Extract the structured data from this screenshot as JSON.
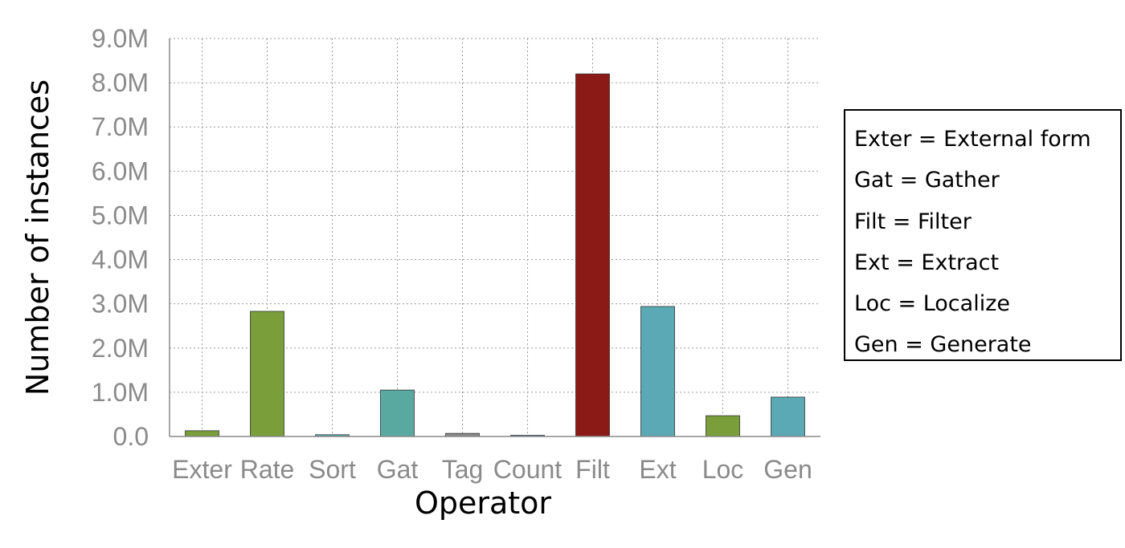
{
  "chart_data": {
    "type": "bar",
    "title": "",
    "xlabel": "Operator",
    "ylabel": "Number of instances",
    "ylim": [
      0,
      9000000
    ],
    "yticks": [
      {
        "value": 0,
        "label": "0.0"
      },
      {
        "value": 1000000,
        "label": "1.0M"
      },
      {
        "value": 2000000,
        "label": "2.0M"
      },
      {
        "value": 3000000,
        "label": "3.0M"
      },
      {
        "value": 4000000,
        "label": "4.0M"
      },
      {
        "value": 5000000,
        "label": "5.0M"
      },
      {
        "value": 6000000,
        "label": "6.0M"
      },
      {
        "value": 7000000,
        "label": "7.0M"
      },
      {
        "value": 8000000,
        "label": "8.0M"
      },
      {
        "value": 9000000,
        "label": "9.0M"
      }
    ],
    "grid": true,
    "grid_style": "dotted",
    "categories": [
      "Exter",
      "Rate",
      "Sort",
      "Gat",
      "Tag",
      "Count",
      "Filt",
      "Ext",
      "Loc",
      "Gen"
    ],
    "values": [
      130000,
      2830000,
      40000,
      1050000,
      70000,
      15000,
      8200000,
      2940000,
      470000,
      890000
    ],
    "colors": [
      "#7a9e3a",
      "#7a9e3a",
      "#5aa9b5",
      "#5aa9a0",
      "#8a8a8a",
      "#5aa9b5",
      "#8b1a16",
      "#5aa9b5",
      "#7a9e3a",
      "#5aa9b5"
    ],
    "legend_position": "right",
    "legend": [
      "Exter = External form",
      "Gat = Gather",
      "Filt = Filter",
      "Ext = Extract",
      "Loc = Localize",
      "Gen = Generate"
    ]
  }
}
